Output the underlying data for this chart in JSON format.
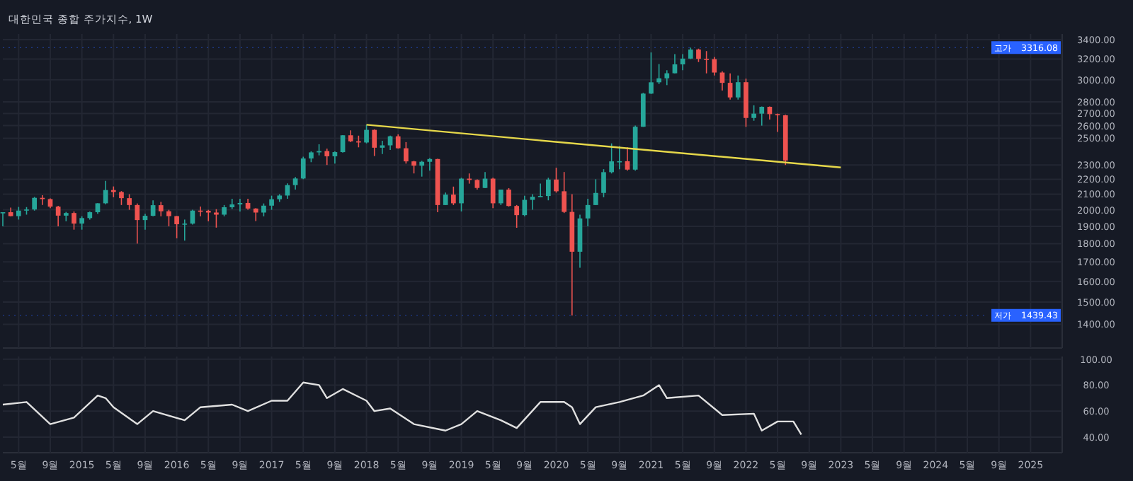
{
  "chart_data": [
    {
      "type": "candlestick",
      "title": "대한민국 종합 주가지수, 1W",
      "log": true,
      "grid": true,
      "tick_labels": "y",
      "x": [
        "2014-03",
        "2014-04",
        "2014-05",
        "2014-06",
        "2014-07",
        "2014-08",
        "2014-09",
        "2014-10",
        "2014-11",
        "2014-12",
        "2015-01",
        "2015-02",
        "2015-03",
        "2015-04",
        "2015-05",
        "2015-06",
        "2015-07",
        "2015-08",
        "2015-09",
        "2015-10",
        "2015-11",
        "2015-12",
        "2016-01",
        "2016-02",
        "2016-03",
        "2016-04",
        "2016-05",
        "2016-06",
        "2016-07",
        "2016-08",
        "2016-09",
        "2016-10",
        "2016-11",
        "2016-12",
        "2017-01",
        "2017-02",
        "2017-03",
        "2017-04",
        "2017-05",
        "2017-06",
        "2017-07",
        "2017-08",
        "2017-09",
        "2017-10",
        "2017-11",
        "2017-12",
        "2018-01",
        "2018-02",
        "2018-03",
        "2018-04",
        "2018-05",
        "2018-06",
        "2018-07",
        "2018-08",
        "2018-09",
        "2018-10",
        "2018-11",
        "2018-12",
        "2019-01",
        "2019-02",
        "2019-03",
        "2019-04",
        "2019-05",
        "2019-06",
        "2019-07",
        "2019-08",
        "2019-09",
        "2019-10",
        "2019-11",
        "2019-12",
        "2020-01",
        "2020-02",
        "2020-03",
        "2020-04",
        "2020-05",
        "2020-06",
        "2020-07",
        "2020-08",
        "2020-09",
        "2020-10",
        "2020-11",
        "2020-12",
        "2021-01",
        "2021-02",
        "2021-03",
        "2021-04",
        "2021-05",
        "2021-06",
        "2021-07",
        "2021-08",
        "2021-09",
        "2021-10",
        "2021-11",
        "2021-12",
        "2022-01",
        "2022-02",
        "2022-03",
        "2022-04",
        "2022-05",
        "2022-06"
      ],
      "ohlc": [
        [
          1979,
          1985,
          1900,
          1985
        ],
        [
          1985,
          2014,
          1960,
          1961
        ],
        [
          1961,
          2018,
          1940,
          1995
        ],
        [
          1995,
          2017,
          1970,
          2002
        ],
        [
          2002,
          2082,
          1995,
          2076
        ],
        [
          2076,
          2093,
          2030,
          2068
        ],
        [
          2068,
          2072,
          2010,
          2020
        ],
        [
          2020,
          2025,
          1900,
          1964
        ],
        [
          1964,
          1987,
          1930,
          1980
        ],
        [
          1980,
          1990,
          1880,
          1916
        ],
        [
          1916,
          1960,
          1880,
          1949
        ],
        [
          1949,
          1990,
          1940,
          1985
        ],
        [
          1985,
          2042,
          1975,
          2041
        ],
        [
          2041,
          2189,
          2035,
          2127
        ],
        [
          2127,
          2151,
          2080,
          2114
        ],
        [
          2114,
          2120,
          2030,
          2074
        ],
        [
          2074,
          2100,
          2000,
          2030
        ],
        [
          2030,
          2040,
          1800,
          1937
        ],
        [
          1937,
          1975,
          1880,
          1963
        ],
        [
          1963,
          2060,
          1960,
          2029
        ],
        [
          2029,
          2050,
          1960,
          1991
        ],
        [
          1991,
          2000,
          1900,
          1961
        ],
        [
          1961,
          1962,
          1830,
          1912
        ],
        [
          1912,
          1940,
          1817,
          1916
        ],
        [
          1916,
          2000,
          1910,
          1995
        ],
        [
          1995,
          2020,
          1960,
          1994
        ],
        [
          1994,
          2000,
          1930,
          1983
        ],
        [
          1983,
          2004,
          1892,
          1970
        ],
        [
          1970,
          2030,
          1960,
          2016
        ],
        [
          2016,
          2070,
          2005,
          2034
        ],
        [
          2034,
          2070,
          1990,
          2043
        ],
        [
          2043,
          2070,
          2000,
          2008
        ],
        [
          2008,
          2010,
          1931,
          1983
        ],
        [
          1983,
          2040,
          1960,
          2026
        ],
        [
          2026,
          2090,
          2000,
          2067
        ],
        [
          2067,
          2100,
          2050,
          2091
        ],
        [
          2091,
          2172,
          2070,
          2160
        ],
        [
          2160,
          2215,
          2130,
          2205
        ],
        [
          2205,
          2360,
          2200,
          2347
        ],
        [
          2347,
          2400,
          2320,
          2392
        ],
        [
          2392,
          2453,
          2370,
          2402
        ],
        [
          2402,
          2420,
          2300,
          2363
        ],
        [
          2363,
          2400,
          2310,
          2394
        ],
        [
          2394,
          2524,
          2390,
          2523
        ],
        [
          2523,
          2562,
          2470,
          2476
        ],
        [
          2476,
          2520,
          2430,
          2467
        ],
        [
          2467,
          2607,
          2460,
          2566
        ],
        [
          2566,
          2570,
          2365,
          2427
        ],
        [
          2427,
          2480,
          2380,
          2445
        ],
        [
          2445,
          2520,
          2410,
          2515
        ],
        [
          2515,
          2530,
          2420,
          2423
        ],
        [
          2423,
          2470,
          2310,
          2326
        ],
        [
          2326,
          2330,
          2240,
          2295
        ],
        [
          2295,
          2330,
          2218,
          2323
        ],
        [
          2323,
          2350,
          2260,
          2343
        ],
        [
          2343,
          2345,
          1985,
          2030
        ],
        [
          2030,
          2110,
          2030,
          2097
        ],
        [
          2097,
          2150,
          2030,
          2041
        ],
        [
          2041,
          2210,
          1990,
          2204
        ],
        [
          2204,
          2240,
          2170,
          2195
        ],
        [
          2195,
          2200,
          2130,
          2141
        ],
        [
          2141,
          2250,
          2140,
          2204
        ],
        [
          2204,
          2210,
          2010,
          2041
        ],
        [
          2041,
          2130,
          2030,
          2130
        ],
        [
          2130,
          2140,
          2020,
          2024
        ],
        [
          2024,
          2030,
          1891,
          1967
        ],
        [
          1967,
          2090,
          1960,
          2063
        ],
        [
          2063,
          2100,
          2000,
          2083
        ],
        [
          2083,
          2170,
          2080,
          2088
        ],
        [
          2088,
          2210,
          2060,
          2198
        ],
        [
          2198,
          2280,
          2110,
          2119
        ],
        [
          2119,
          2250,
          1980,
          1987
        ],
        [
          1987,
          2100,
          1439,
          1755
        ],
        [
          1755,
          1970,
          1670,
          1947
        ],
        [
          1947,
          2070,
          1900,
          2030
        ],
        [
          2030,
          2200,
          2030,
          2108
        ],
        [
          2108,
          2270,
          2080,
          2249
        ],
        [
          2249,
          2460,
          2240,
          2326
        ],
        [
          2326,
          2440,
          2270,
          2327
        ],
        [
          2327,
          2430,
          2260,
          2267
        ],
        [
          2267,
          2600,
          2260,
          2591
        ],
        [
          2591,
          2880,
          2590,
          2873
        ],
        [
          2873,
          3266,
          2870,
          2976
        ],
        [
          2976,
          3150,
          2960,
          3013
        ],
        [
          3013,
          3090,
          2950,
          3061
        ],
        [
          3061,
          3250,
          3060,
          3147
        ],
        [
          3147,
          3250,
          3090,
          3204
        ],
        [
          3204,
          3316,
          3200,
          3296
        ],
        [
          3296,
          3305,
          3170,
          3202
        ],
        [
          3202,
          3280,
          3060,
          3199
        ],
        [
          3199,
          3220,
          3040,
          3068
        ],
        [
          3068,
          3080,
          2900,
          2971
        ],
        [
          2971,
          3060,
          2820,
          2839
        ],
        [
          2839,
          3040,
          2820,
          2977
        ],
        [
          2977,
          3010,
          2590,
          2663
        ],
        [
          2663,
          2770,
          2640,
          2699
        ],
        [
          2699,
          2760,
          2600,
          2757
        ],
        [
          2757,
          2760,
          2650,
          2695
        ],
        [
          2695,
          2700,
          2550,
          2685
        ],
        [
          2685,
          2690,
          2300,
          2332
        ]
      ],
      "series": [
        {
          "type": "line",
          "color": "#e6d84a",
          "x": [
            "2018-01",
            "2023-01"
          ],
          "values": [
            2607,
            2282
          ]
        }
      ],
      "ref_lines": [
        {
          "axis": "y",
          "value": 3316.08,
          "label": "고가",
          "color": "#2962ff"
        },
        {
          "axis": "y",
          "value": 1439.43,
          "label": "저가",
          "color": "#2962ff"
        }
      ],
      "annotations": [
        "3316.08",
        "1439.43"
      ],
      "xlim": [
        "2014-03",
        "2025-05"
      ],
      "ylim": [
        1300,
        3460
      ],
      "yticks": [
        {
          "value": 1400,
          "label": "1400.00"
        },
        {
          "value": 1500,
          "label": "1500.00"
        },
        {
          "value": 1600,
          "label": "1600.00"
        },
        {
          "value": 1700,
          "label": "1700.00"
        },
        {
          "value": 1800,
          "label": "1800.00"
        },
        {
          "value": 1900,
          "label": "1900.00"
        },
        {
          "value": 2000,
          "label": "2000.00"
        },
        {
          "value": 2100,
          "label": "2100.00"
        },
        {
          "value": 2200,
          "label": "2200.00"
        },
        {
          "value": 2300,
          "label": "2300.00"
        },
        {
          "value": 2500,
          "label": "2500.00"
        },
        {
          "value": 2600,
          "label": "2600.00"
        },
        {
          "value": 2700,
          "label": "2700.00"
        },
        {
          "value": 2800,
          "label": "2800.00"
        },
        {
          "value": 3000,
          "label": "3000.00"
        },
        {
          "value": 3200,
          "label": "3200.00"
        },
        {
          "value": 3400,
          "label": "3400.00"
        }
      ],
      "xticks": [
        {
          "value": "2014-05",
          "label": null
        },
        {
          "value": "2014-09",
          "label": null
        },
        {
          "value": "2015-01",
          "label": null
        },
        {
          "value": "2015-05",
          "label": null
        },
        {
          "value": "2015-09",
          "label": null
        },
        {
          "value": "2016-01",
          "label": null
        },
        {
          "value": "2016-05",
          "label": null
        },
        {
          "value": "2016-09",
          "label": null
        },
        {
          "value": "2017-01",
          "label": null
        },
        {
          "value": "2017-05",
          "label": null
        },
        {
          "value": "2017-09",
          "label": null
        },
        {
          "value": "2018-01",
          "label": null
        },
        {
          "value": "2018-05",
          "label": null
        },
        {
          "value": "2018-09",
          "label": null
        },
        {
          "value": "2019-01",
          "label": null
        },
        {
          "value": "2019-05",
          "label": null
        },
        {
          "value": "2019-09",
          "label": null
        },
        {
          "value": "2020-01",
          "label": null
        },
        {
          "value": "2020-05",
          "label": null
        },
        {
          "value": "2020-09",
          "label": null
        },
        {
          "value": "2021-01",
          "label": null
        },
        {
          "value": "2021-05",
          "label": null
        },
        {
          "value": "2021-09",
          "label": null
        },
        {
          "value": "2022-01",
          "label": null
        },
        {
          "value": "2022-05",
          "label": null
        },
        {
          "value": "2022-09",
          "label": null
        },
        {
          "value": "2023-01",
          "label": null
        },
        {
          "value": "2023-05",
          "label": null
        },
        {
          "value": "2023-09",
          "label": null
        },
        {
          "value": "2024-01",
          "label": null
        },
        {
          "value": "2024-05",
          "label": null
        },
        {
          "value": "2024-09",
          "label": null
        },
        {
          "value": "2025-01",
          "label": null
        }
      ]
    },
    {
      "type": "line",
      "grid": true,
      "series": [
        {
          "color": "#e0e0e0",
          "x": [
            "2014-03",
            "2014-06",
            "2014-09",
            "2014-12",
            "2015-03",
            "2015-04",
            "2015-05",
            "2015-08",
            "2015-10",
            "2016-02",
            "2016-04",
            "2016-08",
            "2016-10",
            "2017-01",
            "2017-03",
            "2017-05",
            "2017-07",
            "2017-08",
            "2017-10",
            "2018-01",
            "2018-02",
            "2018-04",
            "2018-07",
            "2018-11",
            "2019-01",
            "2019-03",
            "2019-06",
            "2019-08",
            "2019-11",
            "2020-02",
            "2020-03",
            "2020-04",
            "2020-06",
            "2020-09",
            "2020-12",
            "2021-02",
            "2021-03",
            "2021-07",
            "2021-10",
            "2022-02",
            "2022-03",
            "2022-05",
            "2022-07",
            "2022-08"
          ],
          "values": [
            65,
            67,
            50,
            55,
            72,
            70,
            63,
            50,
            60,
            53,
            63,
            65,
            60,
            68,
            68,
            82,
            80,
            70,
            77,
            68,
            60,
            62,
            50,
            45,
            50,
            60,
            53,
            47,
            67,
            67,
            63,
            50,
            63,
            67,
            72,
            80,
            70,
            72,
            57,
            58,
            45,
            52,
            52,
            42
          ]
        }
      ],
      "xlim": [
        "2014-03",
        "2025-05"
      ],
      "ylim": [
        28,
        102
      ],
      "yticks": [
        {
          "value": 40,
          "label": "40.00"
        },
        {
          "value": 60,
          "label": "60.00"
        },
        {
          "value": 80,
          "label": "80.00"
        },
        {
          "value": 100,
          "label": "100.00"
        }
      ],
      "xticks": [
        {
          "value": "2014-05",
          "label": "5월"
        },
        {
          "value": "2014-09",
          "label": "9월"
        },
        {
          "value": "2015-01",
          "label": "2015"
        },
        {
          "value": "2015-05",
          "label": "5월"
        },
        {
          "value": "2015-09",
          "label": "9월"
        },
        {
          "value": "2016-01",
          "label": "2016"
        },
        {
          "value": "2016-05",
          "label": "5월"
        },
        {
          "value": "2016-09",
          "label": "9월"
        },
        {
          "value": "2017-01",
          "label": "2017"
        },
        {
          "value": "2017-05",
          "label": "5월"
        },
        {
          "value": "2017-09",
          "label": "9월"
        },
        {
          "value": "2018-01",
          "label": "2018"
        },
        {
          "value": "2018-05",
          "label": "5월"
        },
        {
          "value": "2018-09",
          "label": "9월"
        },
        {
          "value": "2019-01",
          "label": "2019"
        },
        {
          "value": "2019-05",
          "label": "5월"
        },
        {
          "value": "2019-09",
          "label": "9월"
        },
        {
          "value": "2020-01",
          "label": "2020"
        },
        {
          "value": "2020-05",
          "label": "5월"
        },
        {
          "value": "2020-09",
          "label": "9월"
        },
        {
          "value": "2021-01",
          "label": "2021"
        },
        {
          "value": "2021-05",
          "label": "5월"
        },
        {
          "value": "2021-09",
          "label": "9월"
        },
        {
          "value": "2022-01",
          "label": "2022"
        },
        {
          "value": "2022-05",
          "label": "5월"
        },
        {
          "value": "2022-09",
          "label": "9월"
        },
        {
          "value": "2023-01",
          "label": "2023"
        },
        {
          "value": "2023-05",
          "label": "5월"
        },
        {
          "value": "2023-09",
          "label": "9월"
        },
        {
          "value": "2024-01",
          "label": "2024"
        },
        {
          "value": "2024-05",
          "label": "5월"
        },
        {
          "value": "2024-09",
          "label": "9월"
        },
        {
          "value": "2025-01",
          "label": "2025"
        }
      ]
    }
  ]
}
